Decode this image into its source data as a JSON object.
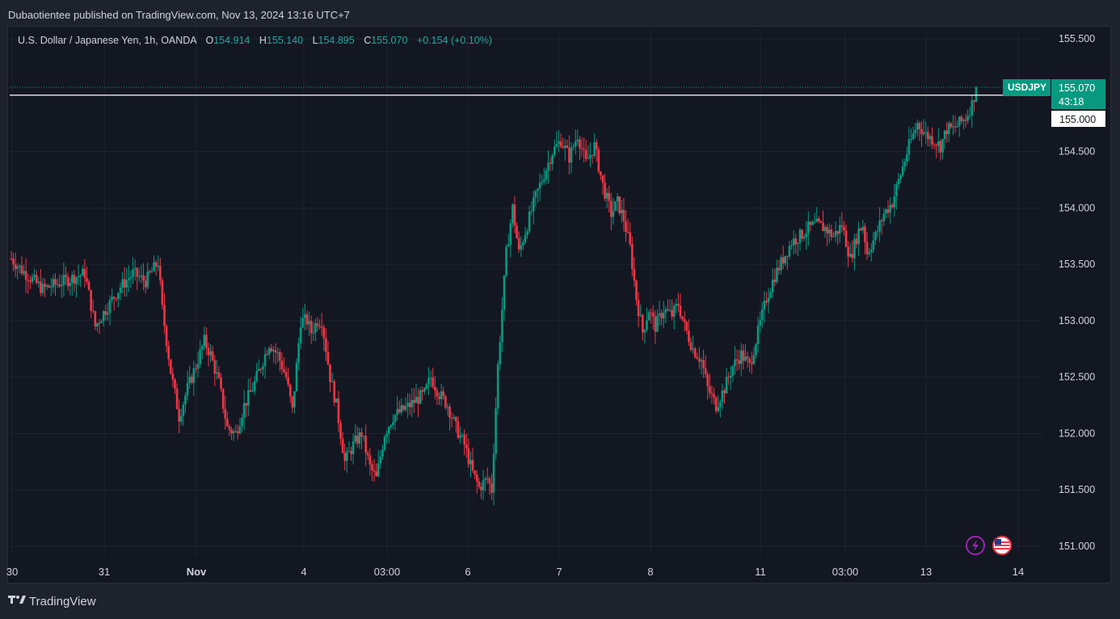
{
  "publisher_line": "Dubaotientee published on TradingView.com, Nov 13, 2024 13:16 UTC+7",
  "footer": {
    "brand": "TradingView",
    "logo": "tv-logo-icon"
  },
  "legend": {
    "symbol_text": "U.S. Dollar / Japanese Yen, 1h, OANDA",
    "o_label": "O",
    "o": "154.914",
    "h_label": "H",
    "h": "155.140",
    "l_label": "L",
    "l": "154.895",
    "c_label": "C",
    "c": "155.070",
    "change": "+0.154 (+0.10%)"
  },
  "price_tag": {
    "symbol": "USDJPY",
    "price": "155.070",
    "countdown": "43:18"
  },
  "level_tag": {
    "price": "155.000"
  },
  "colors": {
    "up": "#089981",
    "down": "#f23645",
    "grid": "#1f2330",
    "text": "#d1d4dc",
    "bg": "#131722"
  },
  "icons": [
    "lightning-icon",
    "us-flag-icon"
  ],
  "chart_data": {
    "type": "candlestick",
    "interval": "1h",
    "y_ticks": [
      "151.000",
      "151.500",
      "152.000",
      "152.500",
      "153.000",
      "153.500",
      "154.000",
      "154.500",
      "155.000",
      "155.500"
    ],
    "ylim": [
      151.0,
      155.5
    ],
    "x_ticks": [
      "30",
      "31",
      "Nov",
      "4",
      "03:00",
      "6",
      "7",
      "8",
      "11",
      "03:00",
      "13",
      "14"
    ],
    "horizontal_level": 155.0,
    "last_price": 155.07,
    "path_points": [
      [
        0,
        153.55
      ],
      [
        5,
        153.45
      ],
      [
        15,
        153.28
      ],
      [
        25,
        153.35
      ],
      [
        35,
        153.42
      ],
      [
        40,
        152.95
      ],
      [
        45,
        153.1
      ],
      [
        52,
        153.3
      ],
      [
        58,
        153.42
      ],
      [
        64,
        153.35
      ],
      [
        70,
        153.52
      ],
      [
        72,
        153.1
      ],
      [
        76,
        152.55
      ],
      [
        80,
        152.15
      ],
      [
        84,
        152.4
      ],
      [
        88,
        152.6
      ],
      [
        92,
        152.82
      ],
      [
        95,
        152.7
      ],
      [
        99,
        152.45
      ],
      [
        103,
        152.05
      ],
      [
        107,
        152.0
      ],
      [
        111,
        152.25
      ],
      [
        115,
        152.4
      ],
      [
        119,
        152.6
      ],
      [
        123,
        152.8
      ],
      [
        127,
        152.7
      ],
      [
        131,
        152.5
      ],
      [
        134,
        152.2
      ],
      [
        138,
        153.0
      ],
      [
        141,
        153.0
      ],
      [
        143,
        152.9
      ],
      [
        146,
        153.0
      ],
      [
        148,
        153.0
      ],
      [
        152,
        152.5
      ],
      [
        155,
        152.25
      ],
      [
        159,
        151.75
      ],
      [
        163,
        151.9
      ],
      [
        167,
        152.0
      ],
      [
        171,
        151.7
      ],
      [
        174,
        151.6
      ],
      [
        178,
        152.0
      ],
      [
        182,
        152.15
      ],
      [
        186,
        152.2
      ],
      [
        190,
        152.25
      ],
      [
        193,
        152.3
      ],
      [
        197,
        152.35
      ],
      [
        200,
        152.5
      ],
      [
        204,
        152.35
      ],
      [
        208,
        152.25
      ],
      [
        212,
        152.05
      ],
      [
        216,
        151.9
      ],
      [
        220,
        151.65
      ],
      [
        223,
        151.52
      ],
      [
        227,
        151.6
      ],
      [
        229,
        151.5
      ],
      [
        232,
        152.6
      ],
      [
        234,
        153.1
      ],
      [
        236,
        153.6
      ],
      [
        239,
        154.0
      ],
      [
        242,
        153.6
      ],
      [
        246,
        153.85
      ],
      [
        250,
        154.1
      ],
      [
        254,
        154.3
      ],
      [
        258,
        154.5
      ],
      [
        262,
        154.6
      ],
      [
        266,
        154.45
      ],
      [
        270,
        154.65
      ],
      [
        274,
        154.4
      ],
      [
        278,
        154.55
      ],
      [
        282,
        154.2
      ],
      [
        286,
        153.95
      ],
      [
        289,
        154.05
      ],
      [
        292,
        153.9
      ],
      [
        295,
        153.65
      ],
      [
        298,
        153.2
      ],
      [
        301,
        152.9
      ],
      [
        304,
        153.1
      ],
      [
        307,
        152.95
      ],
      [
        311,
        153.1
      ],
      [
        315,
        153.05
      ],
      [
        318,
        153.15
      ],
      [
        321,
        152.95
      ],
      [
        325,
        152.75
      ],
      [
        329,
        152.65
      ],
      [
        332,
        152.4
      ],
      [
        336,
        152.25
      ],
      [
        340,
        152.4
      ],
      [
        344,
        152.6
      ],
      [
        348,
        152.7
      ],
      [
        352,
        152.6
      ],
      [
        356,
        152.9
      ],
      [
        360,
        153.2
      ],
      [
        364,
        153.4
      ],
      [
        368,
        153.55
      ],
      [
        372,
        153.7
      ],
      [
        376,
        153.75
      ],
      [
        380,
        153.82
      ],
      [
        384,
        153.85
      ],
      [
        388,
        153.82
      ],
      [
        392,
        153.75
      ],
      [
        396,
        153.85
      ],
      [
        400,
        153.55
      ],
      [
        404,
        153.8
      ],
      [
        406,
        153.85
      ],
      [
        408,
        153.6
      ],
      [
        412,
        153.75
      ],
      [
        416,
        153.95
      ],
      [
        420,
        154.05
      ],
      [
        424,
        154.3
      ],
      [
        428,
        154.55
      ],
      [
        432,
        154.75
      ],
      [
        436,
        154.65
      ],
      [
        440,
        154.6
      ],
      [
        443,
        154.55
      ],
      [
        446,
        154.7
      ],
      [
        449,
        154.7
      ],
      [
        452,
        154.75
      ],
      [
        455,
        154.8
      ],
      [
        458,
        154.92
      ],
      [
        460,
        155.07
      ]
    ]
  }
}
